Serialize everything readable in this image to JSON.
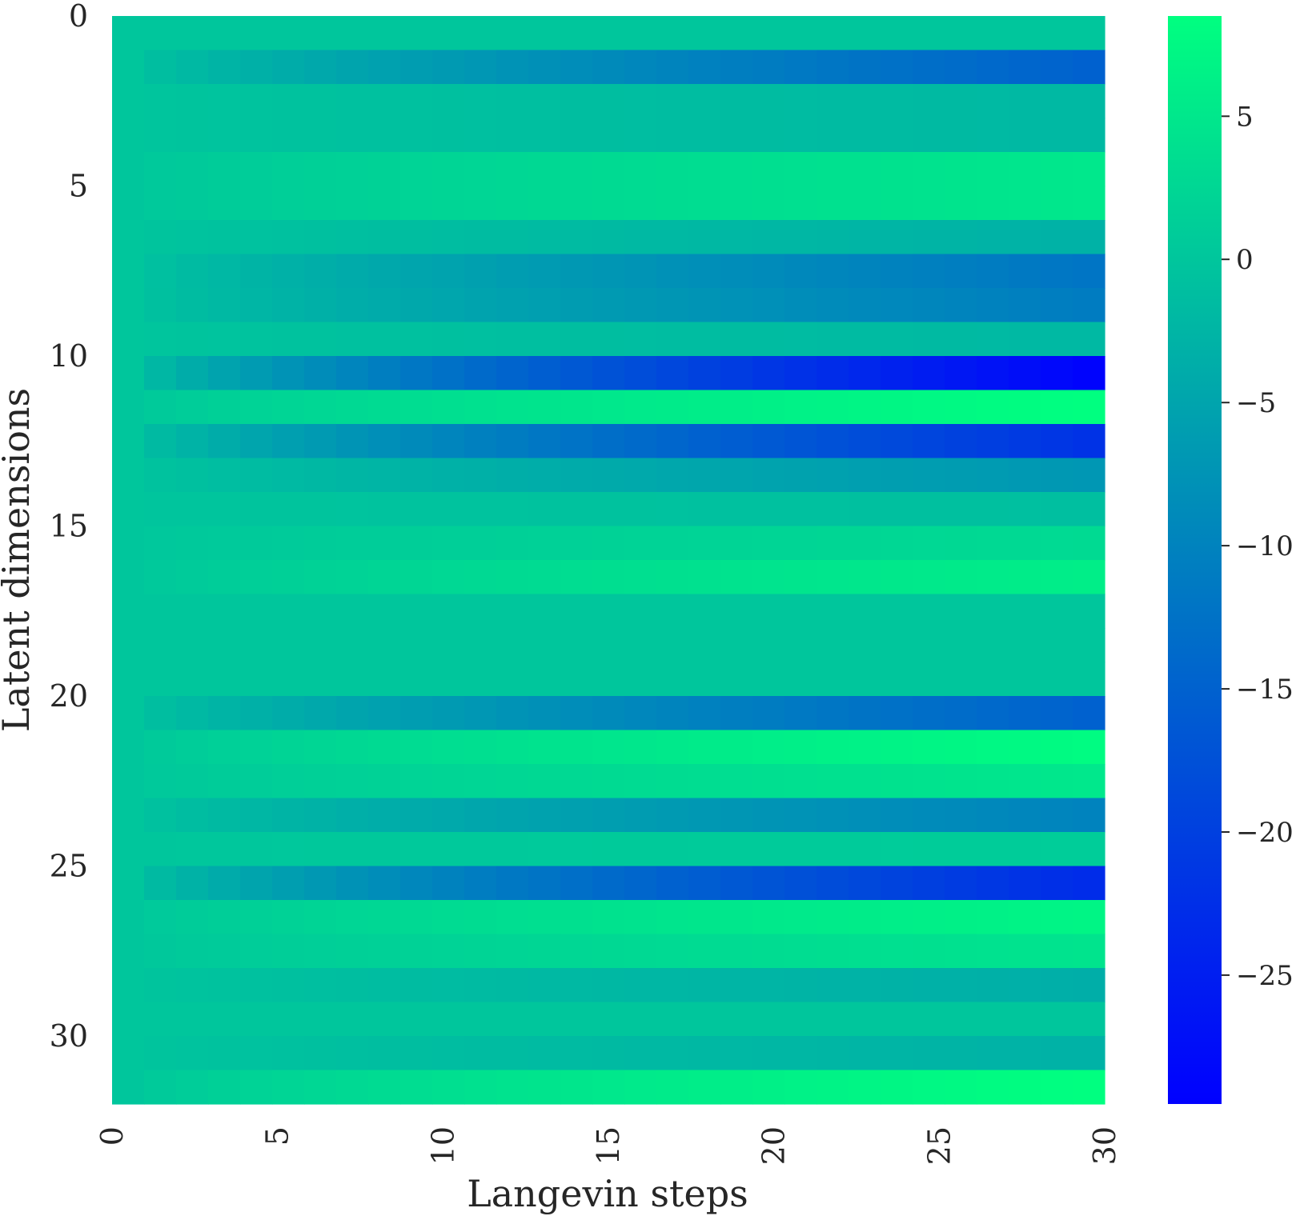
{
  "chart_data": {
    "type": "heatmap",
    "xlabel": "Langevin steps",
    "ylabel": "Latent dimensions",
    "x_tick_labels": [
      "0",
      "5",
      "10",
      "15",
      "20",
      "25",
      "30"
    ],
    "y_tick_labels": [
      "0",
      "5",
      "10",
      "15",
      "20",
      "25",
      "30"
    ],
    "n_steps": 30,
    "n_dims": 32,
    "colormap": "winter",
    "colormap_low": "#0000ff",
    "colormap_high": "#00ff80",
    "colorbar_range": [
      -29.5,
      8.5
    ],
    "colorbar_ticks": [
      5,
      0,
      -5,
      -10,
      -15,
      -20,
      -25
    ],
    "colorbar_tick_labels": [
      "5",
      "0",
      "−5",
      "−10",
      "−15",
      "−20",
      "−25"
    ],
    "final_values": [
      0.0,
      -15.0,
      -2.0,
      -2.0,
      5.0,
      5.0,
      -3.0,
      -12.0,
      -11.0,
      -2.0,
      -29.0,
      8.5,
      -22.0,
      -7.0,
      -1.0,
      3.0,
      6.0,
      0.0,
      0.0,
      0.0,
      -15.0,
      8.0,
      5.0,
      -10.0,
      1.0,
      -23.0,
      7.0,
      4.5,
      -3.5,
      0.0,
      -3.0,
      8.5
    ],
    "grid": false,
    "legend": "none"
  }
}
